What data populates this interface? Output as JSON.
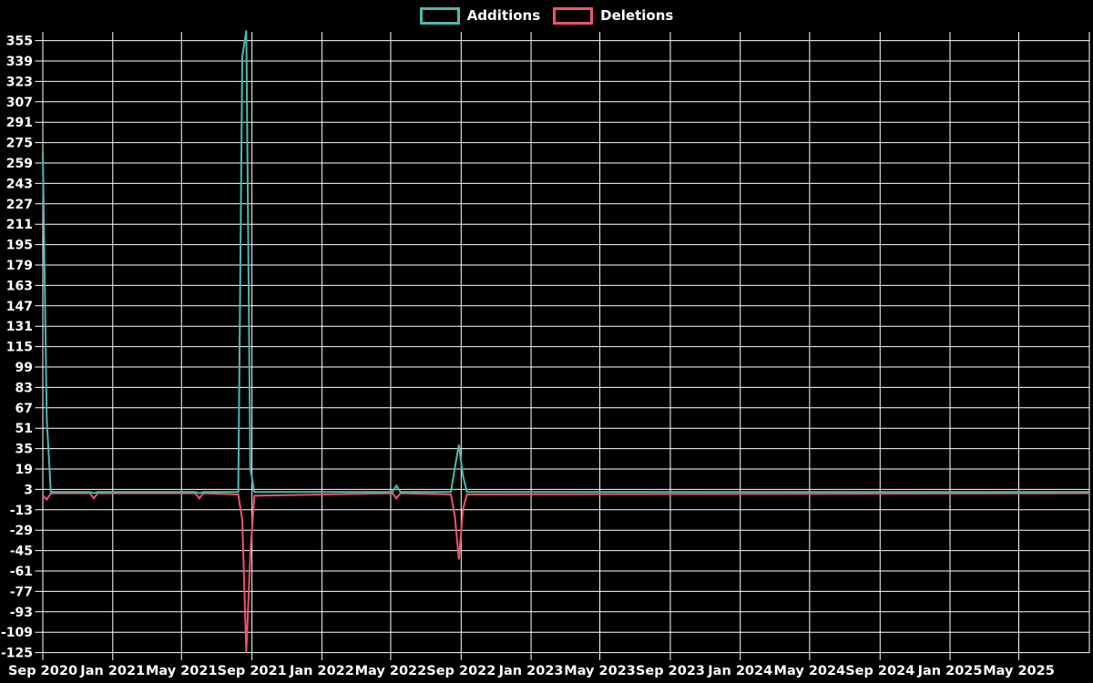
{
  "legend": {
    "additions_label": "Additions",
    "deletions_label": "Deletions"
  },
  "colors": {
    "background": "#000000",
    "grid": "#ffffff",
    "text": "#ffffff",
    "additions": "#4db8b2",
    "deletions": "#ee5567"
  },
  "chart_data": {
    "type": "line",
    "title": "",
    "xlabel": "",
    "ylabel": "",
    "legend_position": "top-center",
    "grid": true,
    "y_ticks": [
      355,
      339,
      323,
      307,
      291,
      275,
      259,
      243,
      227,
      211,
      195,
      179,
      163,
      147,
      131,
      115,
      99,
      83,
      67,
      51,
      35,
      19,
      3,
      -13,
      -29,
      -45,
      -61,
      -77,
      -93,
      -109,
      -125
    ],
    "y_axis_range": [
      -125,
      363
    ],
    "x_ticks": [
      {
        "label": "Sep 2020",
        "date": "2020-09-01"
      },
      {
        "label": "Jan 2021",
        "date": "2021-01-01"
      },
      {
        "label": "May 2021",
        "date": "2021-05-01"
      },
      {
        "label": "Sep 2021",
        "date": "2021-09-01"
      },
      {
        "label": "Jan 2022",
        "date": "2022-01-01"
      },
      {
        "label": "May 2022",
        "date": "2022-05-01"
      },
      {
        "label": "Sep 2022",
        "date": "2022-09-01"
      },
      {
        "label": "Jan 2023",
        "date": "2023-01-01"
      },
      {
        "label": "May 2023",
        "date": "2023-05-01"
      },
      {
        "label": "Sep 2023",
        "date": "2023-09-01"
      },
      {
        "label": "Jan 2024",
        "date": "2024-01-01"
      },
      {
        "label": "May 2024",
        "date": "2024-05-01"
      },
      {
        "label": "Sep 2024",
        "date": "2024-09-01"
      },
      {
        "label": "Jan 2025",
        "date": "2025-01-01"
      },
      {
        "label": "May 2025",
        "date": "2025-05-01"
      }
    ],
    "x_axis_end_date": "2025-09-05",
    "series": [
      {
        "name": "Additions",
        "color": "#4db8b2",
        "points": [
          [
            "2020-09-01",
            267
          ],
          [
            "2020-09-08",
            57
          ],
          [
            "2020-09-15",
            1
          ],
          [
            "2020-11-22",
            1
          ],
          [
            "2020-11-29",
            0
          ],
          [
            "2020-12-06",
            1
          ],
          [
            "2021-05-25",
            1
          ],
          [
            "2021-06-01",
            0
          ],
          [
            "2021-06-08",
            1
          ],
          [
            "2021-08-08",
            1
          ],
          [
            "2021-08-15",
            342
          ],
          [
            "2021-08-22",
            363
          ],
          [
            "2021-08-29",
            20
          ],
          [
            "2021-09-05",
            1
          ],
          [
            "2022-05-04",
            1
          ],
          [
            "2022-05-11",
            6
          ],
          [
            "2022-05-18",
            1
          ],
          [
            "2022-08-14",
            1
          ],
          [
            "2022-08-21",
            20
          ],
          [
            "2022-08-28",
            38
          ],
          [
            "2022-09-04",
            14
          ],
          [
            "2022-09-11",
            1
          ],
          [
            "2025-09-05",
            1
          ]
        ]
      },
      {
        "name": "Deletions",
        "color": "#ee5567",
        "points": [
          [
            "2020-09-01",
            -2
          ],
          [
            "2020-09-08",
            -5
          ],
          [
            "2020-09-15",
            0
          ],
          [
            "2020-11-22",
            0
          ],
          [
            "2020-11-29",
            -4
          ],
          [
            "2020-12-06",
            0
          ],
          [
            "2021-05-25",
            0
          ],
          [
            "2021-06-01",
            -4
          ],
          [
            "2021-06-08",
            0
          ],
          [
            "2021-08-08",
            -1
          ],
          [
            "2021-08-15",
            -21
          ],
          [
            "2021-08-22",
            -125
          ],
          [
            "2021-08-29",
            -48
          ],
          [
            "2021-09-05",
            -2
          ],
          [
            "2022-05-04",
            0
          ],
          [
            "2022-05-11",
            -4
          ],
          [
            "2022-05-18",
            0
          ],
          [
            "2022-08-14",
            -1
          ],
          [
            "2022-08-21",
            -18
          ],
          [
            "2022-08-28",
            -52
          ],
          [
            "2022-09-04",
            -13
          ],
          [
            "2022-09-11",
            -1
          ],
          [
            "2025-09-05",
            0
          ]
        ]
      }
    ]
  }
}
